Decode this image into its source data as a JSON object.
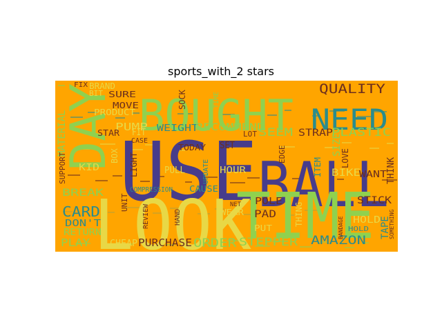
{
  "figure": {
    "title": "sports_with_2 stars",
    "background_color": "#FFA500",
    "palette": {
      "green": "#8FD14F",
      "teal": "#2A8C8C",
      "indigo": "#473C8B",
      "yellow": "#E8D846",
      "brown": "#6B2E1E",
      "olive": "#B5A33A"
    }
  },
  "words": [
    {
      "text": "USE",
      "color": "#473C8B"
    },
    {
      "text": "BALL",
      "color": "#473C8B"
    },
    {
      "text": "TIME",
      "color": "#8FD14F"
    },
    {
      "text": "LOOK",
      "color": "#E8D846"
    },
    {
      "text": "BOUGHT",
      "color": "#8FD14F"
    },
    {
      "text": "DAY",
      "color": "#8FD14F"
    },
    {
      "text": "NEED",
      "color": "#2A8C8C"
    },
    {
      "text": "QUALITY",
      "color": "#6B2E1E"
    },
    {
      "text": "CARD",
      "color": "#2A8C8C"
    },
    {
      "text": "AMAZON",
      "color": "#2A8C8C"
    },
    {
      "text": "PURCHASE",
      "color": "#6B2E1E"
    },
    {
      "text": "ORDER",
      "color": "#8FD14F"
    },
    {
      "text": "STEPPER",
      "color": "#8FD14F"
    },
    {
      "text": "PUMP",
      "color": "#E8D846"
    },
    {
      "text": "WEIGHT",
      "color": "#2A8C8C"
    },
    {
      "text": "RECOMMEND",
      "color": "#8FD14F"
    },
    {
      "text": "SEEM",
      "color": "#8FD14F"
    },
    {
      "text": "STRAP",
      "color": "#6B2E1E"
    },
    {
      "text": "PLASTIC",
      "color": "#8FD14F"
    },
    {
      "text": "STICK",
      "color": "#6B2E1E"
    },
    {
      "text": "POLE",
      "color": "#6B2E1E"
    },
    {
      "text": "PAD",
      "color": "#6B2E1E"
    },
    {
      "text": "BIKE",
      "color": "#E8D846"
    },
    {
      "text": "WANT",
      "color": "#6B2E1E"
    },
    {
      "text": "THINK",
      "color": "#6B2E1E"
    },
    {
      "text": "TAPE",
      "color": "#2A8C8C"
    },
    {
      "text": "HOLD",
      "color": "#E8D846"
    },
    {
      "text": "MATERIAL",
      "color": "#8FD14F"
    },
    {
      "text": "SUPPORT",
      "color": "#6B2E1E"
    },
    {
      "text": "KID",
      "color": "#E8D846"
    },
    {
      "text": "BREAK",
      "color": "#8FD14F"
    },
    {
      "text": "DON'T",
      "color": "#2A8C8C"
    },
    {
      "text": "RETURN",
      "color": "#8FD14F"
    },
    {
      "text": "PLAY",
      "color": "#8FD14F"
    },
    {
      "text": "CHEAP",
      "color": "#E8D846"
    },
    {
      "text": "FIX",
      "color": "#6B2E1E"
    },
    {
      "text": "BRAND",
      "color": "#E8D846"
    },
    {
      "text": "BIT",
      "color": "#E8D846"
    },
    {
      "text": "SURE",
      "color": "#6B2E1E"
    },
    {
      "text": "MOVE",
      "color": "#6B2E1E"
    },
    {
      "text": "PRODUCT",
      "color": "#E8D846"
    },
    {
      "text": "STAR",
      "color": "#6B2E1E"
    },
    {
      "text": "FIT",
      "color": "#E8D846"
    },
    {
      "text": "CASE",
      "color": "#6B2E1E"
    },
    {
      "text": "BOX",
      "color": "#E8D846"
    },
    {
      "text": "LIGHT",
      "color": "#6B2E1E"
    },
    {
      "text": "SOCK",
      "color": "#6B2E1E"
    },
    {
      "text": "TODAY",
      "color": "#6B2E1E"
    },
    {
      "text": "SET",
      "color": "#6B2E1E"
    },
    {
      "text": "LOT",
      "color": "#6B2E1E"
    },
    {
      "text": "EDGE",
      "color": "#6B2E1E"
    },
    {
      "text": "HOUR",
      "color": "#E8D846"
    },
    {
      "text": "CAUSE",
      "color": "#2A8C8C"
    },
    {
      "text": "COMPRESSION",
      "color": "#2A8C8C"
    },
    {
      "text": "UNIT",
      "color": "#6B2E1E"
    },
    {
      "text": "REVIEW",
      "color": "#6B2E1E"
    },
    {
      "text": "HAND",
      "color": "#6B2E1E"
    },
    {
      "text": "PULL",
      "color": "#E8D846"
    },
    {
      "text": "UPDATE",
      "color": "#2A8C8C"
    },
    {
      "text": "WEAR",
      "color": "#E8D846"
    },
    {
      "text": "NET",
      "color": "#6B2E1E"
    },
    {
      "text": "PUT",
      "color": "#E8D846"
    },
    {
      "text": "THING",
      "color": "#E8D846"
    },
    {
      "text": "ITEM",
      "color": "#2A8C8C"
    },
    {
      "text": "LOVE",
      "color": "#6B2E1E"
    },
    {
      "text": "SIZE",
      "color": "#8FD14F"
    },
    {
      "text": "BANDAGE",
      "color": "#6B2E1E"
    },
    {
      "text": "SOMETHING",
      "color": "#6B2E1E"
    },
    {
      "text": "TIME",
      "color": "#8FD14F"
    },
    {
      "text": "HOLD",
      "color": "#2A8C8C"
    }
  ]
}
